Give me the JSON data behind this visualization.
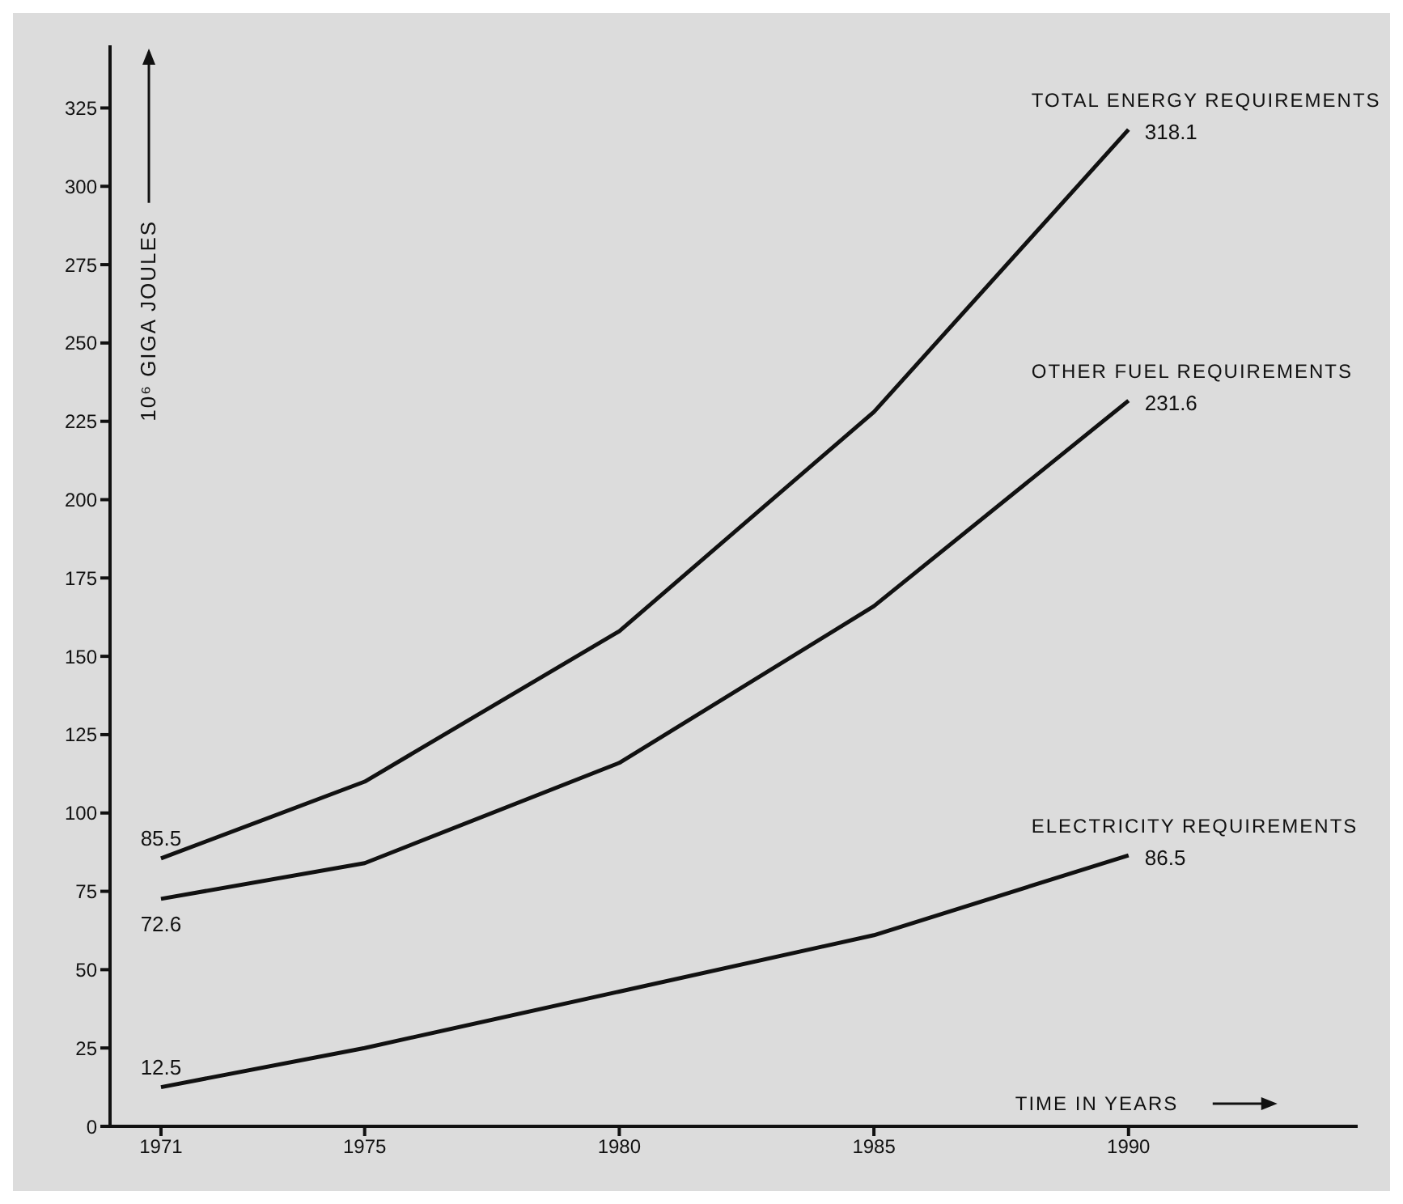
{
  "chart_data": {
    "type": "line",
    "ylabel": "10⁶ GIGA JOULES",
    "xlabel": "TIME IN YEARS",
    "x": [
      1971,
      1975,
      1980,
      1985,
      1990
    ],
    "xlim": [
      1970,
      1994.5
    ],
    "xticks": [
      1971,
      1975,
      1980,
      1985,
      1990
    ],
    "ylim": [
      0,
      345
    ],
    "yticks": [
      0,
      25,
      50,
      75,
      100,
      125,
      150,
      175,
      200,
      225,
      250,
      275,
      300,
      325
    ],
    "grid": false,
    "legend": false,
    "marker": "none",
    "line_style": "solid",
    "series": [
      {
        "name": "TOTAL ENERGY REQUIREMENTS",
        "color": "#111111",
        "values": [
          85.5,
          110,
          158,
          228,
          318.1
        ],
        "value_labels": [
          "85.5",
          null,
          null,
          null,
          "318.1"
        ]
      },
      {
        "name": "OTHER FUEL REQUIREMENTS",
        "color": "#111111",
        "values": [
          72.6,
          84,
          116,
          166,
          231.6
        ],
        "value_labels": [
          "72.6",
          null,
          null,
          null,
          "231.6"
        ]
      },
      {
        "name": "ELECTRICITY REQUIREMENTS",
        "color": "#111111",
        "values": [
          12.5,
          25,
          43,
          61,
          86.5
        ],
        "value_labels": [
          "12.5",
          null,
          null,
          null,
          "86.5"
        ]
      }
    ]
  }
}
